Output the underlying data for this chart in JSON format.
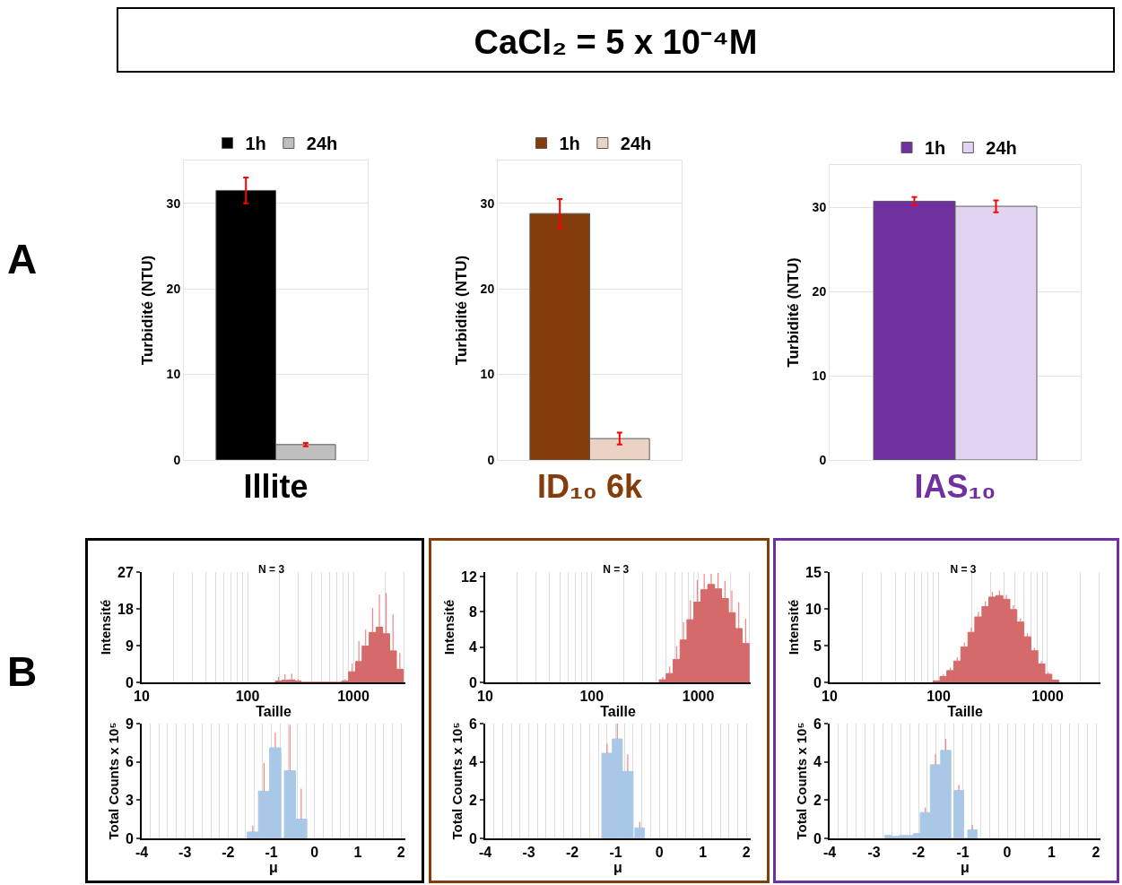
{
  "chart_data": [
    {
      "type": "other",
      "title": "CaCl₂ = 5 x 10⁻⁴M",
      "annotations": [
        "A",
        "B"
      ]
    },
    {
      "type": "bar",
      "ylabel": "Turbidité (NTU)",
      "xlabel": "Illite",
      "categories": [
        null
      ],
      "ylim": [
        0,
        35
      ],
      "yticks": [
        0,
        10,
        20,
        30
      ],
      "grid": "y",
      "legend": "top",
      "series": [
        {
          "name": "1h",
          "color": "#000000",
          "values": [
            31.5
          ],
          "errors": [
            1.5
          ]
        },
        {
          "name": "24h",
          "color": "#bfbfbf",
          "values": [
            1.8
          ],
          "errors": [
            0.2
          ]
        }
      ]
    },
    {
      "type": "bar",
      "ylabel": "Turbidité (NTU)",
      "xlabel": "ID₁₀ 6k",
      "categories": [
        null
      ],
      "ylim": [
        0,
        35
      ],
      "yticks": [
        0,
        10,
        20,
        30
      ],
      "grid": "y",
      "legend": "top",
      "series": [
        {
          "name": "1h",
          "color": "#843c0c",
          "values": [
            28.8
          ],
          "errors": [
            1.7
          ]
        },
        {
          "name": "24h",
          "color": "#ead2c4",
          "values": [
            2.5
          ],
          "errors": [
            0.7
          ]
        }
      ]
    },
    {
      "type": "bar",
      "ylabel": "Turbidité (NTU)",
      "xlabel": "IAS₁₀",
      "categories": [
        null
      ],
      "ylim": [
        0,
        35
      ],
      "yticks": [
        0,
        10,
        20,
        30
      ],
      "grid": "y",
      "legend": "top",
      "series": [
        {
          "name": "1h",
          "color": "#7030a0",
          "values": [
            30.7
          ],
          "errors": [
            0.5
          ]
        },
        {
          "name": "24h",
          "color": "#e2d4f0",
          "values": [
            30.1
          ],
          "errors": [
            0.7
          ]
        }
      ]
    },
    {
      "type": "histogram",
      "title": "N = 3",
      "xlabel": "Taille",
      "ylabel": "Intensité",
      "log": "x",
      "grid": "x",
      "color": "#d46a6a",
      "xlim": [
        10,
        3100
      ],
      "ylim": [
        0,
        27
      ],
      "yticks": [
        0,
        9,
        18,
        27
      ],
      "xticks": [
        10,
        {
          "value": 20,
          "label": null
        },
        {
          "value": 30,
          "label": null
        },
        {
          "value": 40,
          "label": null
        },
        {
          "value": 50,
          "label": null
        },
        {
          "value": 60,
          "label": null
        },
        {
          "value": 70,
          "label": null
        },
        {
          "value": 80,
          "label": null
        },
        {
          "value": 90,
          "label": null
        },
        100,
        {
          "value": 200,
          "label": null
        },
        {
          "value": 300,
          "label": null
        },
        {
          "value": 400,
          "label": null
        },
        {
          "value": 500,
          "label": null
        },
        {
          "value": 600,
          "label": null
        },
        {
          "value": 700,
          "label": null
        },
        {
          "value": 800,
          "label": null
        },
        {
          "value": 900,
          "label": null
        },
        1000,
        {
          "value": 2000,
          "label": null
        },
        {
          "value": 3000,
          "label": null
        }
      ],
      "bins": [
        183,
        210,
        243,
        281,
        321,
        775,
        900,
        1050,
        1210,
        1410,
        1640,
        1890,
        2200,
        2550,
        2960
      ],
      "values": [
        0.3,
        0.5,
        0.6,
        0.3,
        0,
        0.3,
        2.6,
        5.1,
        8.9,
        12.2,
        13.5,
        11.9,
        7.7,
        3.2
      ],
      "errors": [
        1,
        1.5,
        1.5,
        0.5,
        null,
        0.5,
        2,
        5,
        4,
        6,
        8,
        10,
        9,
        4
      ]
    },
    {
      "type": "histogram",
      "xlabel": "μ",
      "ylabel": "Total Counts x 10⁵",
      "grid": "x",
      "color": "#a9c8e8",
      "xlim": [
        -4,
        2.1
      ],
      "ylim": [
        0,
        9
      ],
      "yticks": [
        0,
        3,
        6,
        9
      ],
      "xticks": [
        -4,
        {
          "value": -3.8,
          "label": null
        },
        {
          "value": -3.6,
          "label": null
        },
        {
          "value": -3.4,
          "label": null
        },
        {
          "value": -3.2,
          "label": null
        },
        -3,
        {
          "value": -2.8,
          "label": null
        },
        {
          "value": -2.6,
          "label": null
        },
        {
          "value": -2.4,
          "label": null
        },
        {
          "value": -2.2,
          "label": null
        },
        -2,
        {
          "value": -1.8,
          "label": null
        },
        {
          "value": -1.6,
          "label": null
        },
        {
          "value": -1.4,
          "label": null
        },
        {
          "value": -1.2,
          "label": null
        },
        -1,
        {
          "value": -0.8,
          "label": null
        },
        {
          "value": -0.6,
          "label": null
        },
        {
          "value": -0.4,
          "label": null
        },
        {
          "value": -0.2,
          "label": null
        },
        0,
        {
          "value": 0.2,
          "label": null
        },
        {
          "value": 0.4,
          "label": null
        },
        {
          "value": 0.6,
          "label": null
        },
        {
          "value": 0.8,
          "label": null
        },
        1,
        {
          "value": 1.2,
          "label": null
        },
        {
          "value": 1.4,
          "label": null
        },
        {
          "value": 1.6,
          "label": null
        },
        {
          "value": 1.8,
          "label": null
        },
        2
      ],
      "bins": [
        -1.56,
        -1.3,
        -1.04,
        -0.78,
        -0.7,
        -0.44,
        -0.18
      ],
      "values": [
        0.5,
        3.7,
        7.1,
        0,
        5.3,
        1.5
      ],
      "errors": [
        0.5,
        2.2,
        1.2,
        null,
        3.6,
        2.4
      ]
    },
    {
      "type": "histogram",
      "title": "N = 3",
      "xlabel": "Taille",
      "ylabel": "Intensité",
      "log": "x",
      "grid": "x",
      "color": "#d46a6a",
      "xlim": [
        10,
        3100
      ],
      "ylim": [
        0,
        12.5
      ],
      "yticks": [
        0,
        4,
        8,
        12
      ],
      "xticks": [
        10,
        {
          "value": 20,
          "label": null
        },
        {
          "value": 30,
          "label": null
        },
        {
          "value": 40,
          "label": null
        },
        {
          "value": 50,
          "label": null
        },
        {
          "value": 60,
          "label": null
        },
        {
          "value": 70,
          "label": null
        },
        {
          "value": 80,
          "label": null
        },
        {
          "value": 90,
          "label": null
        },
        100,
        {
          "value": 200,
          "label": null
        },
        {
          "value": 300,
          "label": null
        },
        {
          "value": 400,
          "label": null
        },
        {
          "value": 500,
          "label": null
        },
        {
          "value": 600,
          "label": null
        },
        {
          "value": 700,
          "label": null
        },
        {
          "value": 800,
          "label": null
        },
        {
          "value": 900,
          "label": null
        },
        1000,
        {
          "value": 2000,
          "label": null
        },
        {
          "value": 3000,
          "label": null
        }
      ],
      "bins": [
        430,
        500,
        580,
        674,
        782,
        908,
        1054,
        1225,
        1422,
        1652,
        1915,
        2223,
        2582,
        2999
      ],
      "values": [
        0.3,
        1.0,
        2.6,
        4.8,
        7.1,
        9.1,
        10.5,
        11.1,
        10.6,
        9.5,
        7.9,
        6.1,
        4.4
      ],
      "errors": [
        0.3,
        0.8,
        1.5,
        2,
        2.2,
        2.5,
        1.8,
        1.2,
        1.8,
        2,
        2.5,
        3,
        2.8
      ]
    },
    {
      "type": "histogram",
      "xlabel": "μ",
      "ylabel": "Total Counts x 10⁵",
      "grid": "x",
      "color": "#a9c8e8",
      "xlim": [
        -4,
        2.1
      ],
      "ylim": [
        0,
        6
      ],
      "yticks": [
        0,
        2,
        4,
        6
      ],
      "xticks": [
        -4,
        {
          "value": -3.8,
          "label": null
        },
        {
          "value": -3.6,
          "label": null
        },
        {
          "value": -3.4,
          "label": null
        },
        {
          "value": -3.2,
          "label": null
        },
        -3,
        {
          "value": -2.8,
          "label": null
        },
        {
          "value": -2.6,
          "label": null
        },
        {
          "value": -2.4,
          "label": null
        },
        {
          "value": -2.2,
          "label": null
        },
        -2,
        {
          "value": -1.8,
          "label": null
        },
        {
          "value": -1.6,
          "label": null
        },
        {
          "value": -1.4,
          "label": null
        },
        {
          "value": -1.2,
          "label": null
        },
        -1,
        {
          "value": -0.8,
          "label": null
        },
        {
          "value": -0.6,
          "label": null
        },
        {
          "value": -0.4,
          "label": null
        },
        {
          "value": -0.2,
          "label": null
        },
        0,
        {
          "value": 0.2,
          "label": null
        },
        {
          "value": 0.4,
          "label": null
        },
        {
          "value": 0.6,
          "label": null
        },
        {
          "value": 0.8,
          "label": null
        },
        1,
        {
          "value": 1.2,
          "label": null
        },
        {
          "value": 1.4,
          "label": null
        },
        {
          "value": 1.6,
          "label": null
        },
        {
          "value": 1.8,
          "label": null
        },
        2
      ],
      "bins": [
        -1.32,
        -1.08,
        -0.85,
        -0.6,
        -0.56,
        -0.34
      ],
      "values": [
        4.45,
        5.2,
        3.5,
        0,
        0.55
      ],
      "errors": [
        0.5,
        0.8,
        0.9,
        null,
        0.3
      ]
    },
    {
      "type": "histogram",
      "title": "N = 3",
      "xlabel": "Taille",
      "ylabel": "Intensité",
      "log": "x",
      "grid": "x",
      "color": "#d46a6a",
      "xlim": [
        10,
        3060
      ],
      "ylim": [
        0,
        15
      ],
      "yticks": [
        0,
        5,
        10,
        15
      ],
      "xticks": [
        10,
        {
          "value": 20,
          "label": null
        },
        {
          "value": 30,
          "label": null
        },
        {
          "value": 40,
          "label": null
        },
        {
          "value": 50,
          "label": null
        },
        {
          "value": 60,
          "label": null
        },
        {
          "value": 70,
          "label": null
        },
        {
          "value": 80,
          "label": null
        },
        {
          "value": 90,
          "label": null
        },
        100,
        {
          "value": 200,
          "label": null
        },
        {
          "value": 300,
          "label": null
        },
        {
          "value": 400,
          "label": null
        },
        {
          "value": 500,
          "label": null
        },
        {
          "value": 600,
          "label": null
        },
        {
          "value": 700,
          "label": null
        },
        {
          "value": 800,
          "label": null
        },
        {
          "value": 900,
          "label": null
        },
        1000,
        {
          "value": 2000,
          "label": null
        },
        {
          "value": 3000,
          "label": null
        }
      ],
      "bins": [
        89,
        103,
        119,
        138,
        160,
        186,
        215,
        250,
        289,
        336,
        389,
        451,
        523,
        607,
        703,
        815,
        946,
        1096,
        1271
      ],
      "values": [
        0.2,
        0.8,
        1.6,
        2.9,
        4.8,
        6.8,
        8.9,
        10.3,
        11.6,
        11.8,
        11.3,
        9.9,
        8.2,
        6.2,
        4.3,
        2.5,
        1.1,
        0.3
      ],
      "errors": [
        null,
        0.3,
        0.4,
        0.5,
        0.6,
        0.6,
        0.7,
        0.7,
        0.7,
        0.7,
        0.6,
        0.6,
        0.5,
        0.5,
        0.4,
        0.4,
        0.3,
        null
      ]
    },
    {
      "type": "histogram",
      "xlabel": "μ",
      "ylabel": "Total Counts x 10⁵",
      "grid": "x",
      "color": "#a9c8e8",
      "xlim": [
        -4,
        2.1
      ],
      "ylim": [
        0,
        6
      ],
      "yticks": [
        0,
        2,
        4,
        6
      ],
      "xticks": [
        -4,
        {
          "value": -3.8,
          "label": null
        },
        {
          "value": -3.6,
          "label": null
        },
        {
          "value": -3.4,
          "label": null
        },
        {
          "value": -3.2,
          "label": null
        },
        -3,
        {
          "value": -2.8,
          "label": null
        },
        {
          "value": -2.6,
          "label": null
        },
        {
          "value": -2.4,
          "label": null
        },
        {
          "value": -2.2,
          "label": null
        },
        -2,
        {
          "value": -1.8,
          "label": null
        },
        {
          "value": -1.6,
          "label": null
        },
        {
          "value": -1.4,
          "label": null
        },
        {
          "value": -1.2,
          "label": null
        },
        -1,
        {
          "value": -0.8,
          "label": null
        },
        {
          "value": -0.6,
          "label": null
        },
        {
          "value": -0.4,
          "label": null
        },
        {
          "value": -0.2,
          "label": null
        },
        0,
        {
          "value": 0.2,
          "label": null
        },
        {
          "value": 0.4,
          "label": null
        },
        {
          "value": 0.6,
          "label": null
        },
        {
          "value": 0.8,
          "label": null
        },
        1,
        {
          "value": 1.2,
          "label": null
        },
        {
          "value": 1.4,
          "label": null
        },
        {
          "value": 1.6,
          "label": null
        },
        {
          "value": 1.8,
          "label": null
        },
        2
      ],
      "bins": [
        -2.76,
        -2.6,
        -2.44,
        -2.27,
        -2.11,
        -1.96,
        -1.73,
        -1.5,
        -1.27,
        -1.2,
        -0.98,
        -0.89,
        -0.68
      ],
      "values": [
        0.15,
        0.1,
        0.15,
        0.15,
        0.25,
        1.35,
        3.85,
        4.6,
        0,
        2.5,
        0,
        0.45
      ],
      "errors": [
        null,
        null,
        null,
        null,
        null,
        0.25,
        0.55,
        0.6,
        null,
        0.3,
        null,
        0.25
      ]
    }
  ]
}
